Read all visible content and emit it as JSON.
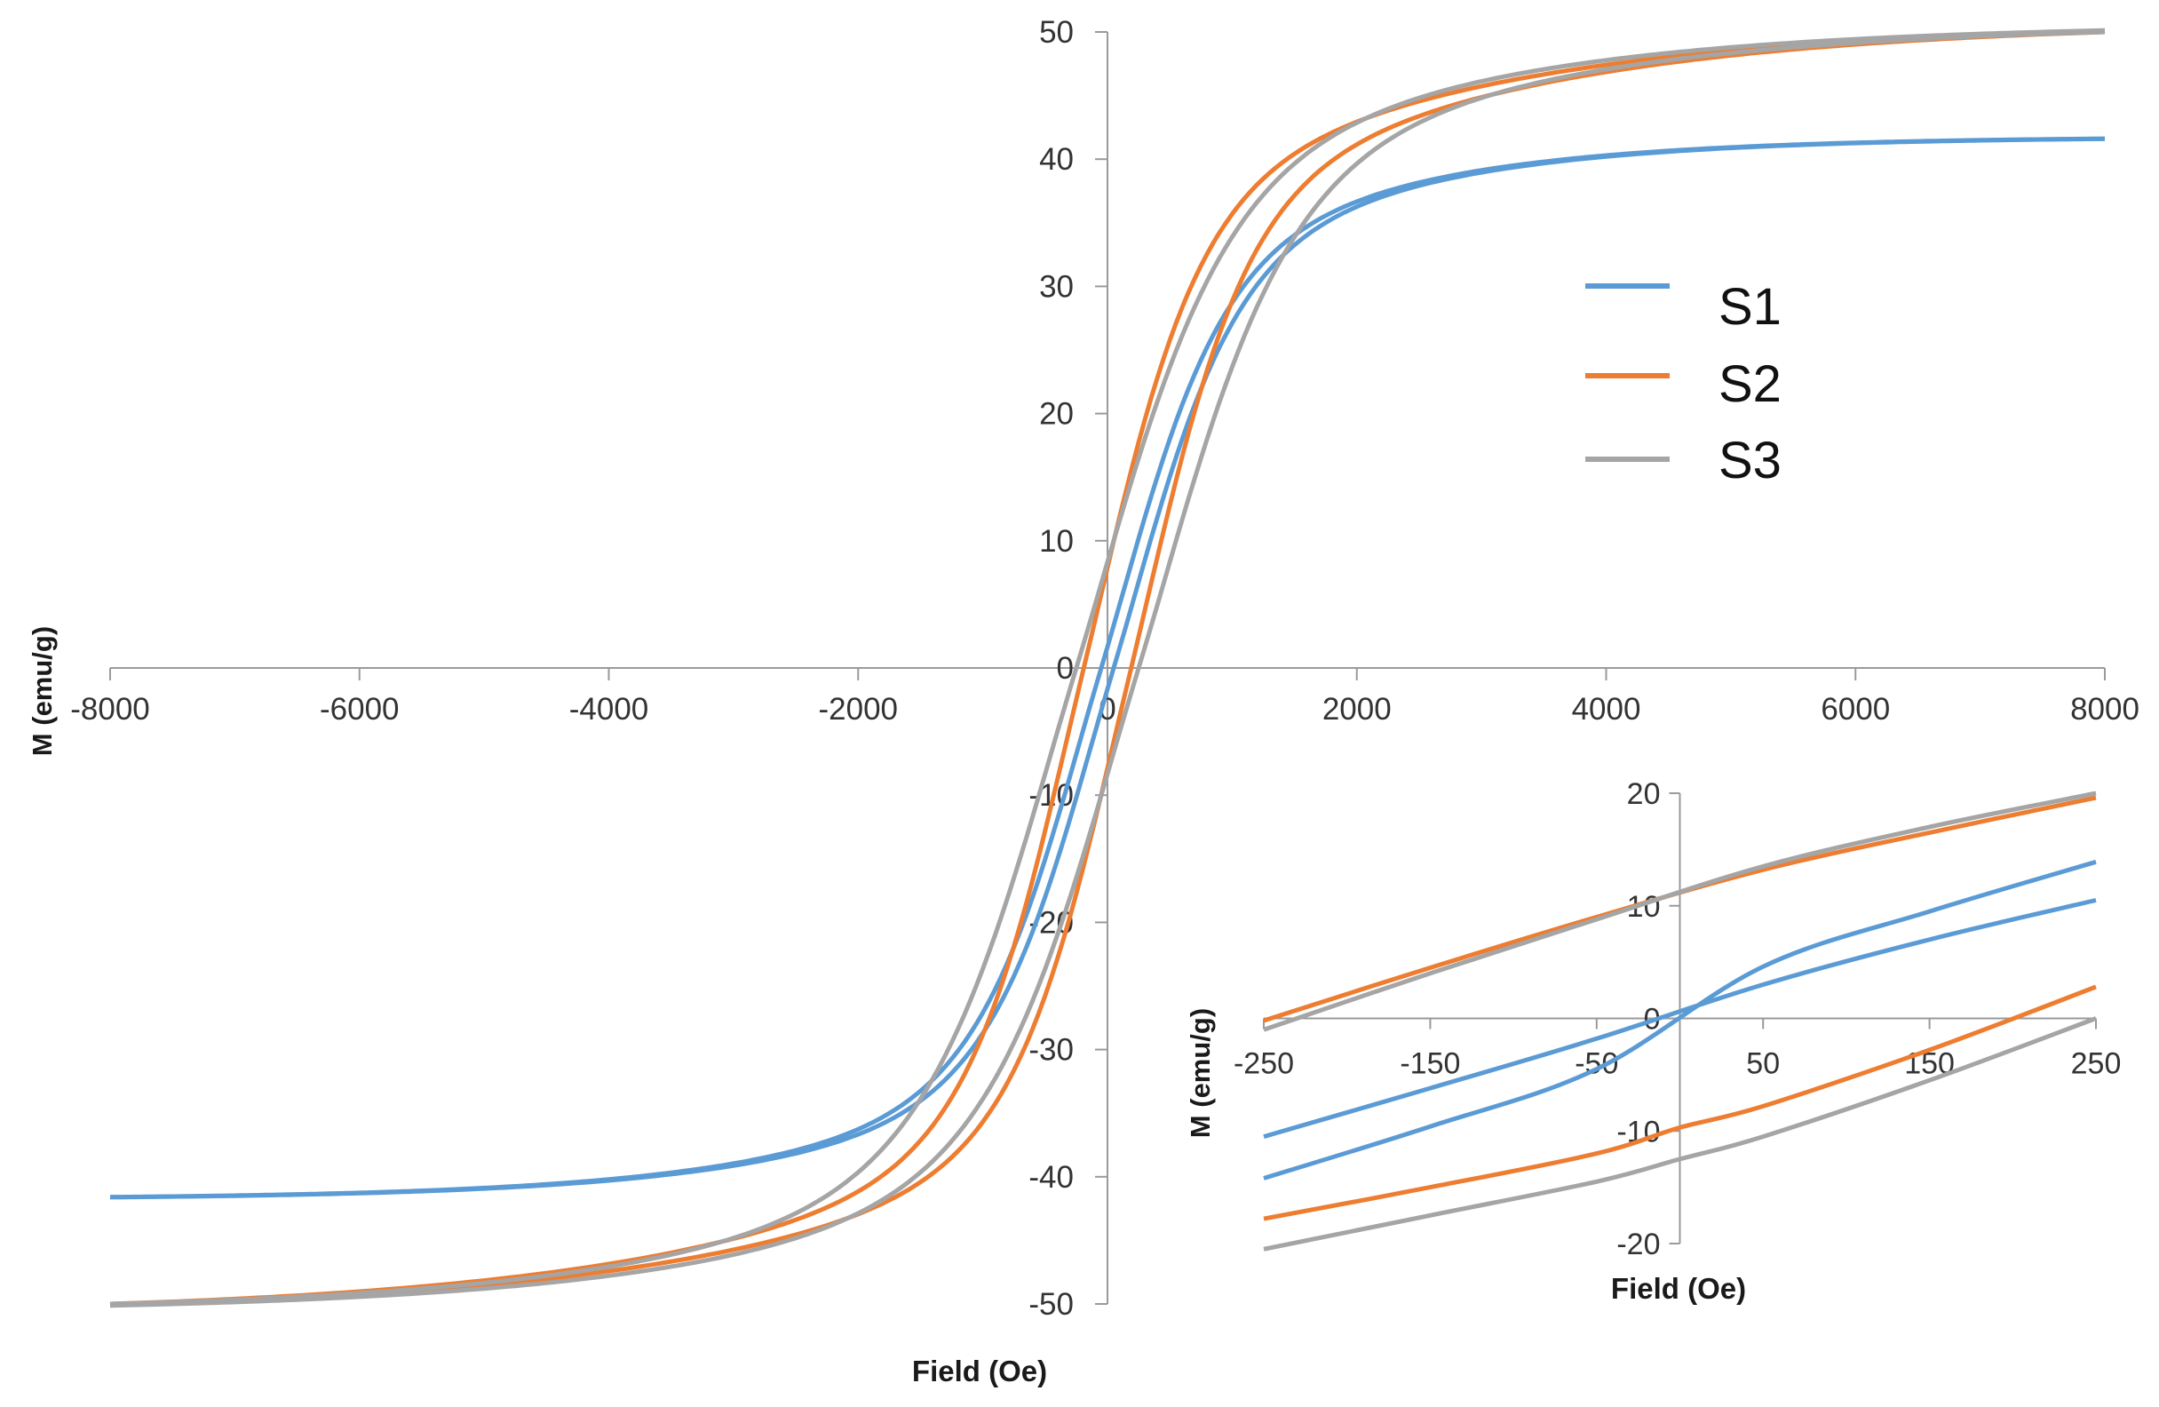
{
  "chart_data": [
    {
      "id": "main",
      "type": "line",
      "title": "",
      "xlabel": "Field (Oe)",
      "ylabel": "M (emu/g)",
      "xlim": [
        -8000,
        8000
      ],
      "ylim": [
        -50,
        50
      ],
      "x_ticks": [
        -8000,
        -6000,
        -4000,
        -2000,
        0,
        2000,
        4000,
        6000,
        8000
      ],
      "y_ticks": [
        -50,
        -40,
        -30,
        -20,
        -10,
        0,
        10,
        20,
        30,
        40,
        50
      ],
      "grid": false,
      "legend": "right",
      "series": [
        {
          "name": "S1",
          "color": "#5B9BD5",
          "Ms": 41.6,
          "Mr": 2.5,
          "Hc": 50,
          "H0": 800
        },
        {
          "name": "S2",
          "color": "#ED7D31",
          "Ms": 50,
          "Mr": 11.5,
          "Hc": 190,
          "H0": 1150
        },
        {
          "name": "S3",
          "color": "#A5A5A5",
          "Ms": 50,
          "Mr": 12,
          "Hc": 250,
          "H0": 1050
        }
      ]
    },
    {
      "id": "inset",
      "type": "line",
      "title": "",
      "xlabel": "Field (Oe)",
      "ylabel": "M (emu/g)",
      "xlim": [
        -250,
        250
      ],
      "ylim": [
        -20,
        20
      ],
      "x_ticks": [
        -250,
        -150,
        -50,
        50,
        150,
        250
      ],
      "y_ticks": [
        -20,
        -10,
        0,
        10,
        20
      ],
      "grid": false,
      "series": [
        {
          "name": "S1 ascending",
          "color": "#5B9BD5",
          "x": [
            -250,
            -150,
            -50,
            50,
            150,
            250
          ],
          "y": [
            -10.5,
            -6.2,
            -1.8,
            3.0,
            7.0,
            10.5
          ]
        },
        {
          "name": "S1 descending",
          "color": "#5B9BD5",
          "x": [
            -250,
            -150,
            -50,
            50,
            150,
            250
          ],
          "y": [
            -14.2,
            -9.6,
            -4.5,
            4.6,
            9.5,
            13.9
          ]
        },
        {
          "name": "S2 ascending",
          "color": "#ED7D31",
          "x": [
            -250,
            -150,
            -50,
            0,
            50,
            150,
            250
          ],
          "y": [
            -17.8,
            -15.0,
            -12.0,
            -9.7,
            -7.8,
            -2.8,
            2.8
          ]
        },
        {
          "name": "S2 descending",
          "color": "#ED7D31",
          "x": [
            -250,
            -150,
            -50,
            50,
            150,
            250
          ],
          "y": [
            -0.2,
            4.5,
            9.0,
            13.2,
            16.5,
            19.6
          ]
        },
        {
          "name": "S3 ascending",
          "color": "#A5A5A5",
          "x": [
            -250,
            -150,
            -50,
            0,
            50,
            150,
            250
          ],
          "y": [
            -20.5,
            -17.5,
            -14.5,
            -12.5,
            -10.5,
            -5.5,
            0.0
          ]
        },
        {
          "name": "S3 descending",
          "color": "#A5A5A5",
          "x": [
            -250,
            -150,
            -50,
            50,
            150,
            250
          ],
          "y": [
            -1.0,
            4.0,
            8.8,
            13.5,
            17.0,
            20.0
          ]
        }
      ]
    }
  ]
}
